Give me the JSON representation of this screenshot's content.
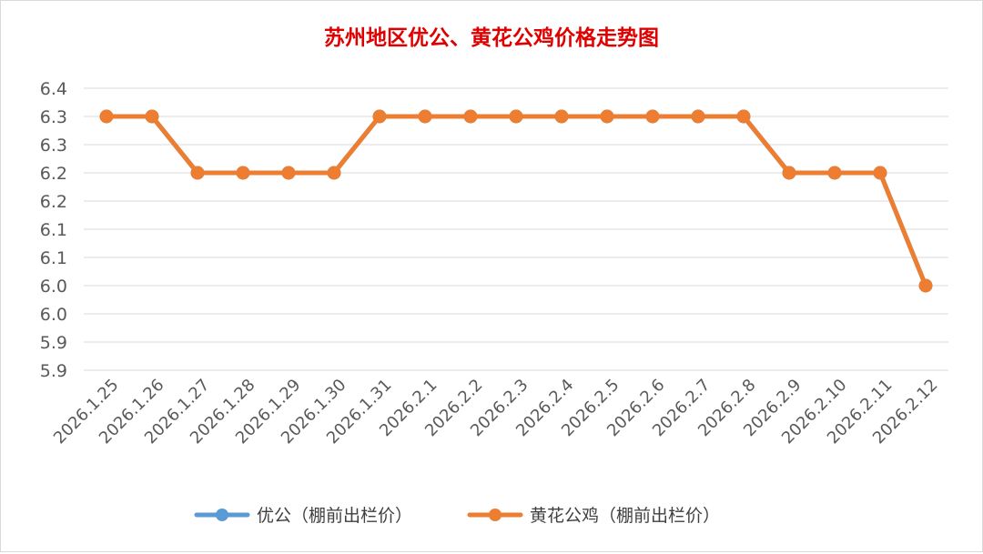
{
  "chart_data": {
    "type": "line",
    "title": "苏州地区优公、黄花公鸡价格走势图",
    "xlabel": "",
    "ylabel": "",
    "categories": [
      "2026.1.25",
      "2026.1.26",
      "2026.1.27",
      "2026.1.28",
      "2026.1.29",
      "2026.1.30",
      "2026.1.31",
      "2026.2.1",
      "2026.2.2",
      "2026.2.3",
      "2026.2.4",
      "2026.2.5",
      "2026.2.6",
      "2026.2.7",
      "2026.2.8",
      "2026.2.9",
      "2026.2.10",
      "2026.2.11",
      "2026.2.12"
    ],
    "y_tick_labels": [
      "5.9",
      "5.9",
      "6.0",
      "6.0",
      "6.1",
      "6.1",
      "6.2",
      "6.2",
      "6.3",
      "6.3",
      "6.4"
    ],
    "ylim": [
      5.85,
      6.35
    ],
    "grid": true,
    "legend_position": "bottom",
    "series": [
      {
        "name": "优公（棚前出栏价）",
        "color": "#5b9bd5",
        "values": [
          6.3,
          6.3,
          6.2,
          6.2,
          6.2,
          6.2,
          6.3,
          6.3,
          6.3,
          6.3,
          6.3,
          6.3,
          6.3,
          6.3,
          6.3,
          6.2,
          6.2,
          6.2,
          6.0
        ]
      },
      {
        "name": "黄花公鸡（棚前出栏价）",
        "color": "#ed7d31",
        "values": [
          6.3,
          6.3,
          6.2,
          6.2,
          6.2,
          6.2,
          6.3,
          6.3,
          6.3,
          6.3,
          6.3,
          6.3,
          6.3,
          6.3,
          6.3,
          6.2,
          6.2,
          6.2,
          6.0
        ]
      }
    ]
  }
}
